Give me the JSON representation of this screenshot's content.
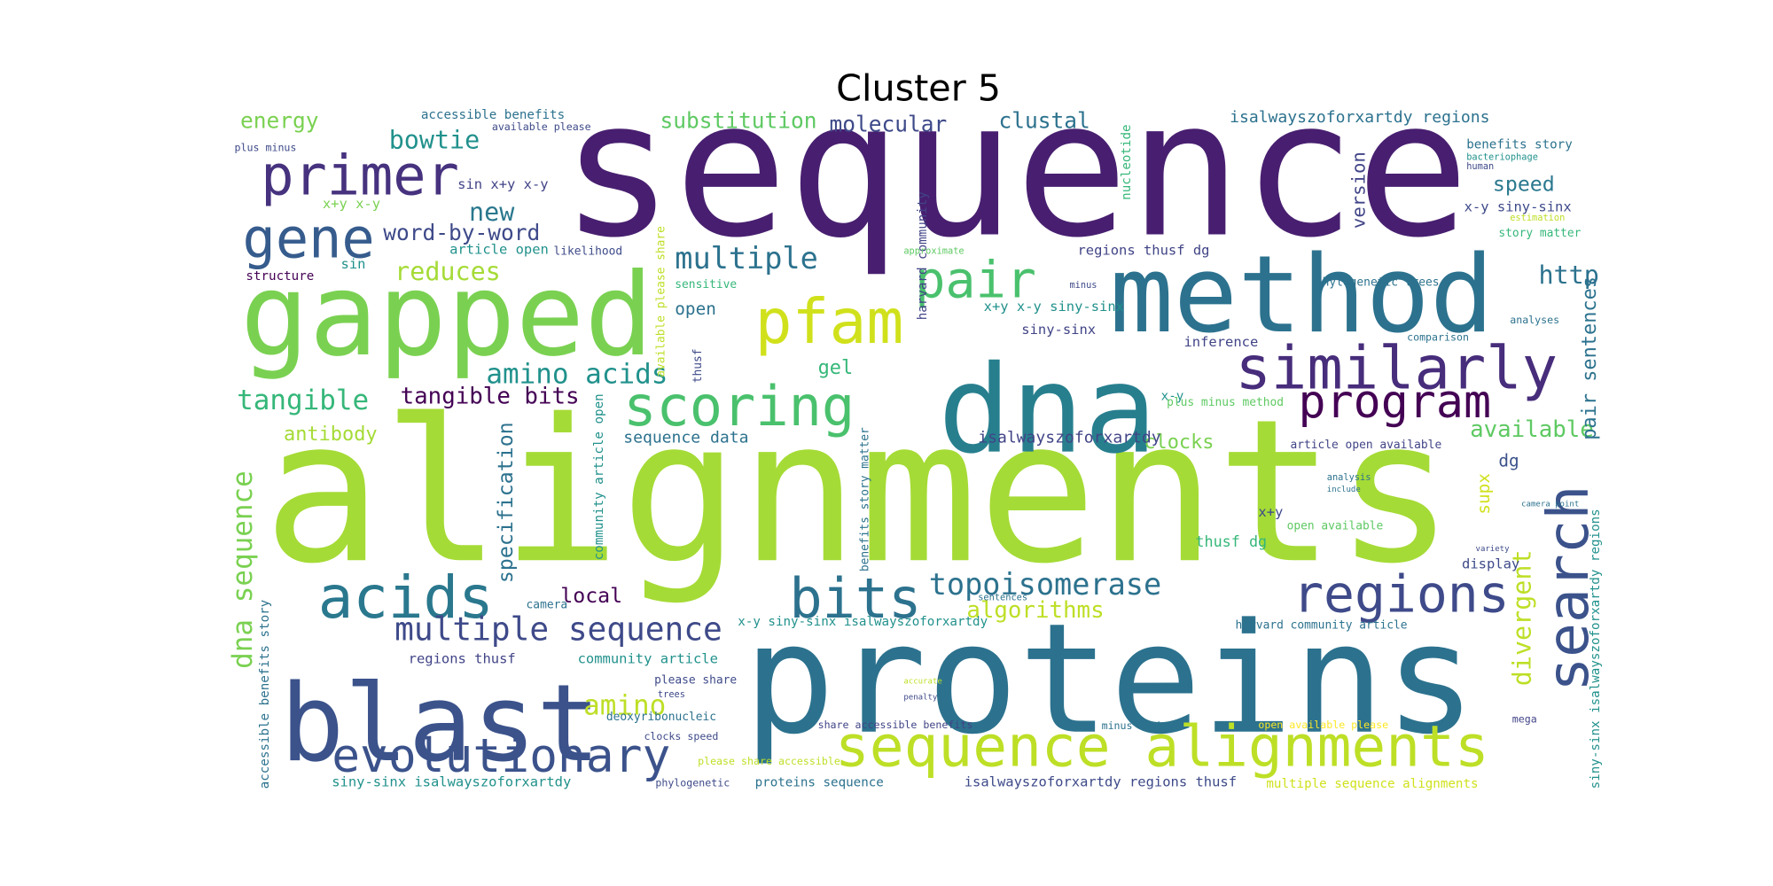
{
  "chart_data": {
    "type": "wordcloud",
    "title": "Cluster 5",
    "words": [
      "sequence",
      "alignments",
      "proteins",
      "dna",
      "gapped",
      "method",
      "blast",
      "primer",
      "gene",
      "pair",
      "pfam",
      "scoring",
      "similarly",
      "program",
      "acids",
      "bits",
      "regions",
      "search",
      "sequence alignments",
      "evolutionary",
      "multiple sequence",
      "topoisomerase",
      "algorithms",
      "local",
      "specification",
      "dna sequence",
      "amino",
      "divergent",
      "multiple",
      "amino acids",
      "tangible",
      "tangible bits",
      "reduces",
      "new",
      "word-by-word",
      "bowtie",
      "energy",
      "substitution",
      "molecular",
      "clustal",
      "http",
      "speed",
      "version",
      "available",
      "pair sentences",
      "isalwayszoforxartdy regions",
      "clocks",
      "isalwayszoforxartdy",
      "sequence data",
      "antibody",
      "open",
      "gel",
      "supx",
      "dg",
      "thusf dg",
      "display",
      "x+y",
      "inference",
      "siny-sinx",
      "x+y x-y siny-sinx",
      "regions thusf dg",
      "harvard community",
      "nucleotide",
      "sin x+y x-y",
      "x+y x-y",
      "sin",
      "structure",
      "article open",
      "accessible benefits",
      "available please",
      "plus minus",
      "benefits story",
      "x-y siny-sinx",
      "story matter",
      "analyses",
      "comparison",
      "phylogenetic trees",
      "community article open",
      "benefits story matter",
      "x-y siny-sinx isalwayszoforxartdy",
      "harvard community article",
      "regions thusf",
      "community article",
      "please share",
      "deoxyribonucleic",
      "share accessible benefits",
      "clocks speed",
      "please share accessible",
      "siny-sinx isalwayszoforxartdy",
      "proteins sequence",
      "isalwayszoforxartdy regions thusf",
      "multiple sequence alignments",
      "phylogenetic",
      "minus method",
      "open available please",
      "mega",
      "accessible benefits story",
      "siny-sinx isalwayszoforxartdy regions",
      "open available",
      "article open available",
      "plus minus method",
      "x-y",
      "camera",
      "thusf",
      "available please share",
      "sensitive",
      "likelihood",
      "camera point",
      "analysis",
      "approximate",
      "minus",
      "human",
      "bacteriophage",
      "estimation",
      "sentences",
      "trees",
      "penalty",
      "accurate",
      "variety",
      "include"
    ]
  }
}
